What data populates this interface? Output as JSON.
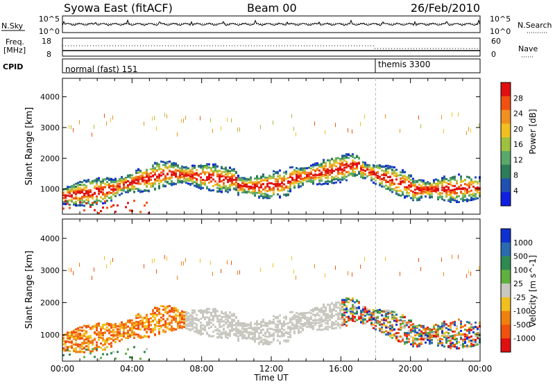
{
  "header": {
    "radar": "Syowa East (fitACF)",
    "beam": "Beam 00",
    "date": "26/Feb/2010"
  },
  "top_panels": {
    "nsky": {
      "label": "N.Sky",
      "tick_top": "10^5",
      "tick_bottom": "10^0"
    },
    "nsearch": {
      "label": "N.Search",
      "tick_top": "10^5",
      "tick_bottom": "10^0"
    },
    "freq": {
      "label_line1": "Freq.",
      "label_line2": "[MHz]",
      "tick_top": "18",
      "tick_bottom": "8"
    },
    "nave": {
      "label": "Nave",
      "tick_top": "60",
      "tick_bottom": "0"
    },
    "cpid": {
      "label": "CPID",
      "segments": [
        {
          "name": "normal (fast) 151",
          "start_hour": 0
        },
        {
          "name": "themis 3300",
          "start_hour": 18
        }
      ]
    }
  },
  "power_scale": {
    "label": "Power [dB]",
    "ticks": [
      "4",
      "8",
      "12",
      "16",
      "20",
      "24",
      "28"
    ],
    "colors": [
      "#1020e0",
      "#2050b0",
      "#2e7d5a",
      "#5aa86a",
      "#a0c040",
      "#f0c020",
      "#f09020",
      "#f05010",
      "#e01010"
    ]
  },
  "velocity_scale": {
    "label": "Velocity [m s^-1]",
    "ticks": [
      "1000",
      "500",
      "100",
      "25",
      "-25",
      "-100",
      "-500",
      "-1000"
    ],
    "colors": [
      "#1030d0",
      "#2a6ab0",
      "#2e8a50",
      "#60b040",
      "#c8c8c0",
      "#f0c020",
      "#f08010",
      "#f05010",
      "#e01010"
    ]
  },
  "chart_data": [
    {
      "type": "heatmap",
      "title": "",
      "xlabel": "",
      "ylabel": "Slant Range [km]",
      "x_ticks": [
        "00:00",
        "04:00",
        "08:00",
        "12:00",
        "16:00",
        "20:00",
        "00:00"
      ],
      "y_ticks": [
        "1000",
        "2000",
        "3000",
        "4000"
      ],
      "xlim_hours": [
        0,
        24
      ],
      "ylim_km": [
        180,
        4600
      ],
      "quantity": "Power [dB]"
    },
    {
      "type": "heatmap",
      "title": "",
      "xlabel": "Time UT",
      "ylabel": "Slant Range [km]",
      "x_ticks": [
        "00:00",
        "04:00",
        "08:00",
        "12:00",
        "16:00",
        "20:00",
        "00:00"
      ],
      "y_ticks": [
        "1000",
        "2000",
        "3000",
        "4000"
      ],
      "xlim_hours": [
        0,
        24
      ],
      "ylim_km": [
        180,
        4600
      ],
      "quantity": "Velocity [m s^-1]"
    }
  ]
}
